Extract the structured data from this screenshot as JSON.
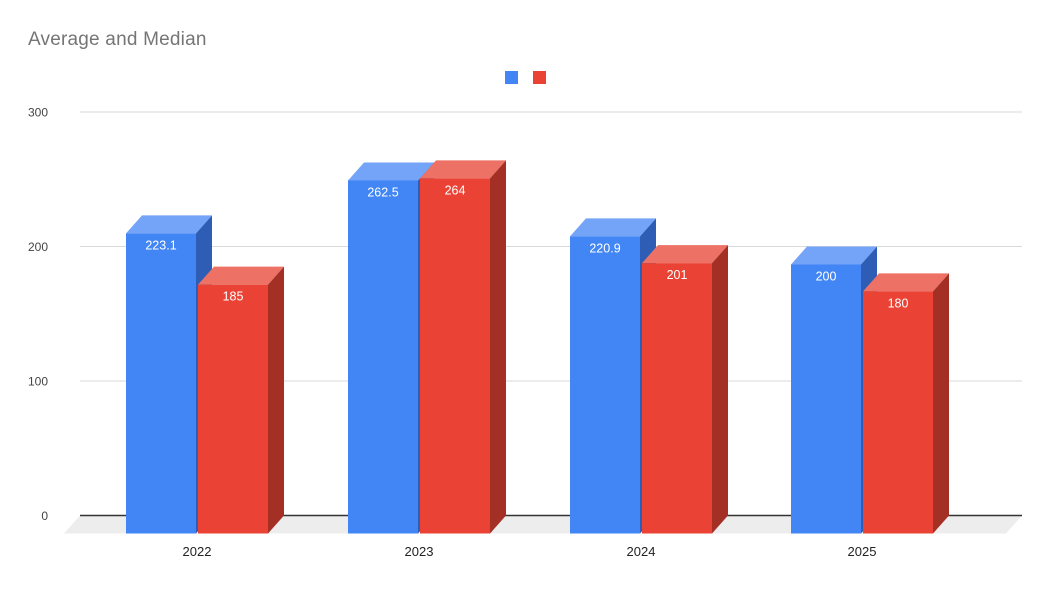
{
  "title": "Average and Median",
  "colors": {
    "background": "#ffffff",
    "title_text": "#757575",
    "axis_tick_text": "#444444",
    "category_text": "#222222",
    "value_label_text": "#ffffff",
    "gridline": "#d9d9d9",
    "zero_line": "#333333",
    "floor": "#ededed"
  },
  "legend": {
    "position": "top-center",
    "entries": [
      {
        "label": "",
        "color": "#4285f4"
      },
      {
        "label": "",
        "color": "#ea4335"
      }
    ]
  },
  "chart_data": {
    "type": "bar",
    "style": "3d-column",
    "title": "Average and Median",
    "categories": [
      "2022",
      "2023",
      "2024",
      "2025"
    ],
    "series": [
      {
        "label": "",
        "swatch_color": "#4285f4",
        "face_colors": {
          "front": "#4285f4",
          "top": "#74a4f7",
          "side": "#2e5db6"
        },
        "values": [
          223.1,
          262.5,
          220.9,
          200
        ],
        "value_labels": [
          "223.1",
          "262.5",
          "220.9",
          "200"
        ]
      },
      {
        "label": "",
        "swatch_color": "#ea4335",
        "face_colors": {
          "front": "#ea4335",
          "top": "#ed7164",
          "side": "#a43025"
        },
        "values": [
          185,
          264,
          201,
          180
        ],
        "value_labels": [
          "185",
          "264",
          "201",
          "180"
        ]
      }
    ],
    "y_axis": {
      "min": 0,
      "max": 300,
      "ticks": [
        0,
        100,
        200,
        300
      ],
      "tick_labels": [
        "0",
        "100",
        "200",
        "300"
      ]
    },
    "x_axis_labels": [
      "2022",
      "2023",
      "2024",
      "2025"
    ],
    "grid": true,
    "legend_position": "top"
  }
}
